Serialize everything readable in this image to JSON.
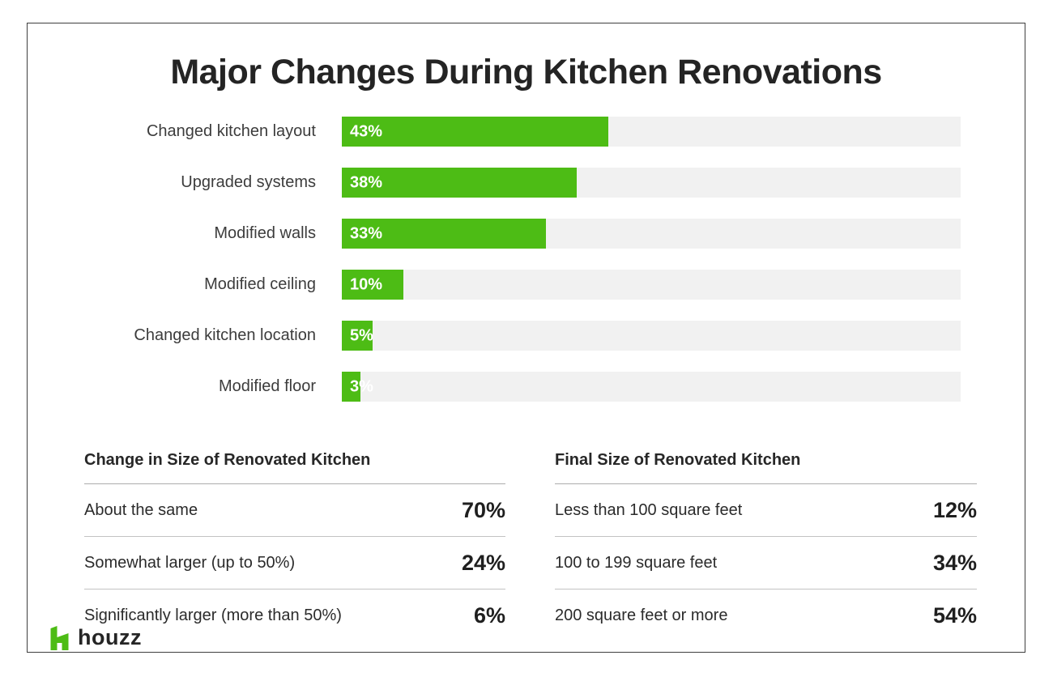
{
  "page": {
    "brand": "houzz"
  },
  "colors": {
    "brand_green": "#4dbc15",
    "bar_track": "#f1f1f1",
    "text_dark": "#2b2b2b"
  },
  "chart_data": [
    {
      "type": "bar",
      "orientation": "horizontal",
      "title": "Major Changes During Kitchen Renovations",
      "categories": [
        "Changed kitchen layout",
        "Upgraded systems",
        "Modified walls",
        "Modified ceiling",
        "Changed kitchen location",
        "Modified floor"
      ],
      "values": [
        43,
        38,
        33,
        10,
        5,
        3
      ],
      "value_labels": [
        "43%",
        "38%",
        "33%",
        "10%",
        "5%",
        "3%"
      ],
      "xlim": [
        0,
        100
      ],
      "grid": false,
      "legend": false,
      "bar_color": "#4dbc15",
      "track_color": "#f1f1f1",
      "value_label_position": "inside-left"
    },
    {
      "type": "table",
      "title": "Change in Size of Renovated Kitchen",
      "rows": [
        {
          "label": "About the same",
          "value": "70%"
        },
        {
          "label": "Somewhat larger (up to 50%)",
          "value": "24%"
        },
        {
          "label": "Significantly larger (more than 50%)",
          "value": "6%"
        }
      ]
    },
    {
      "type": "table",
      "title": "Final Size of Renovated Kitchen",
      "rows": [
        {
          "label": "Less than 100 square feet",
          "value": "12%"
        },
        {
          "label": "100 to 199 square feet",
          "value": "34%"
        },
        {
          "label": "200 square feet or more",
          "value": "54%"
        }
      ]
    }
  ]
}
